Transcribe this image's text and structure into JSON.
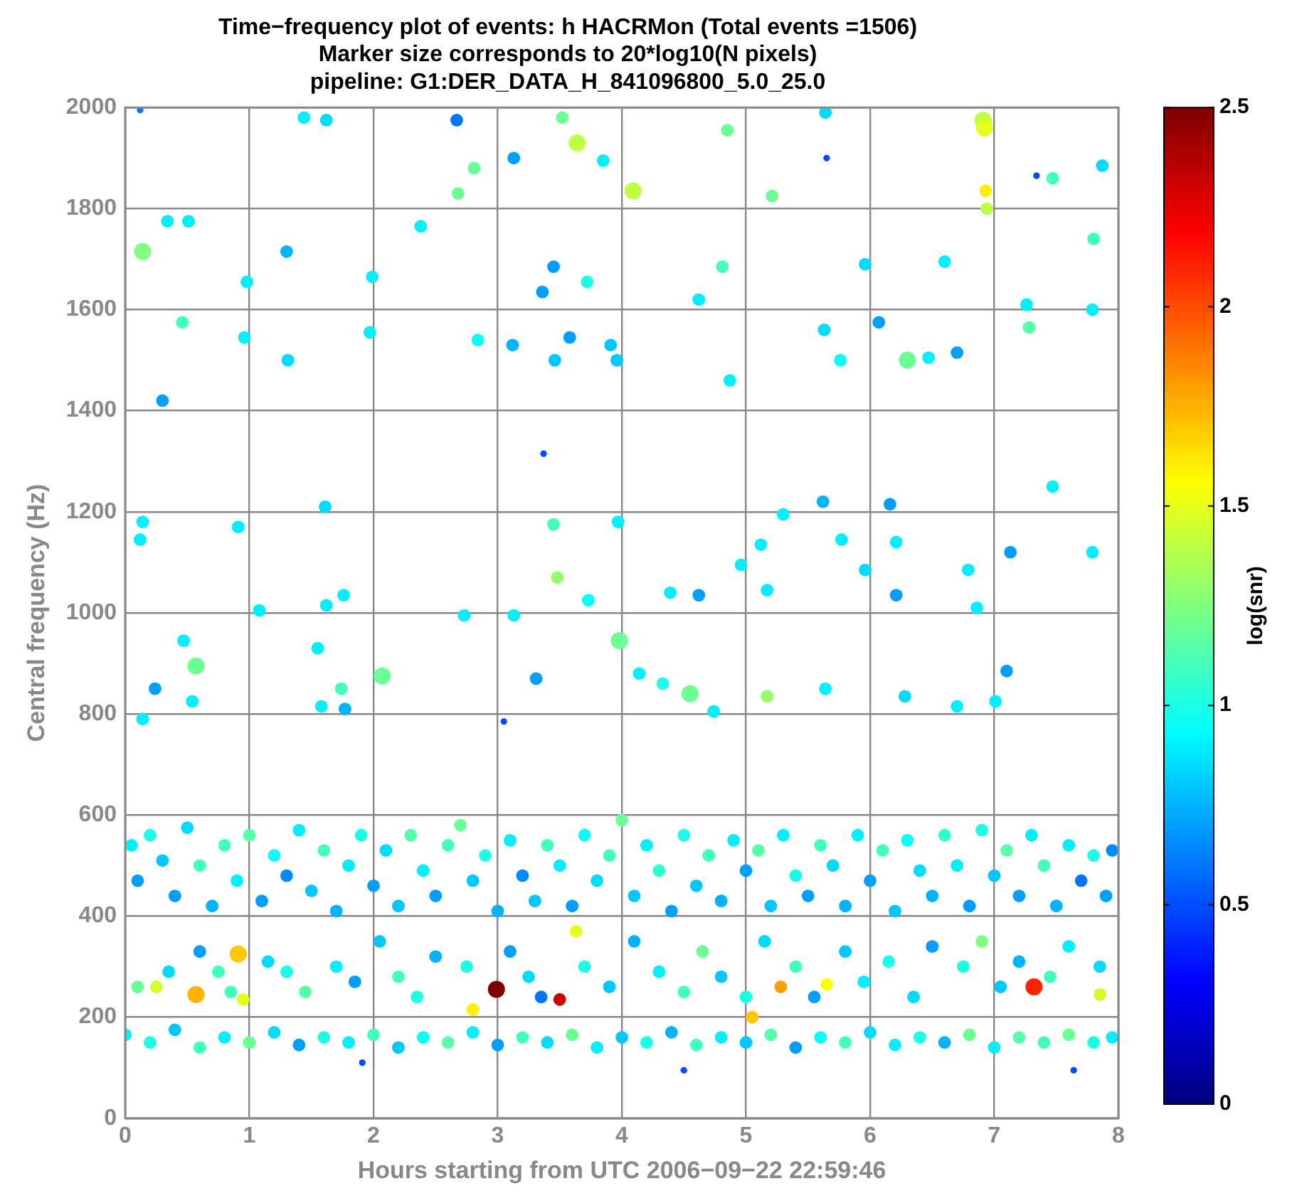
{
  "chart_data": {
    "type": "scatter",
    "title": "Time−frequency plot of events: h HACRMon (Total events =1506)",
    "subtitle": "Marker size corresponds to 20*log10(N pixels)\npipeline: G1:DER_DATA_H_841096800_5.0_25.0",
    "xlabel": "Hours starting from UTC 2006−09−22 22:59:46",
    "ylabel": "Central frequency (Hz)",
    "clabel": "log(snr)",
    "xlim": [
      0,
      8
    ],
    "xticks": [
      0,
      1,
      2,
      3,
      4,
      5,
      6,
      7,
      8
    ],
    "ylim": [
      0,
      2000
    ],
    "yticks": [
      0,
      200,
      400,
      600,
      800,
      1000,
      1200,
      1400,
      1600,
      1800,
      2000
    ],
    "clim": [
      0,
      2.5
    ],
    "cticks": [
      0,
      0.5,
      1,
      1.5,
      2,
      2.5
    ],
    "grid": true,
    "legend": false,
    "marker": "circle",
    "series": [
      {
        "x": [
          0.12,
          1.44,
          1.62,
          2.67,
          3.52,
          3.64,
          3.85,
          2.81,
          2.68,
          3.13,
          4.09,
          4.85,
          5.21,
          5.64,
          5.65,
          6.91,
          6.92,
          6.93,
          6.94,
          7.34,
          7.47,
          7.87,
          0.14,
          0.34,
          0.51,
          1.3,
          0.98,
          1.99,
          2.38,
          3.45,
          3.36,
          3.72,
          4.81,
          4.62,
          5.96,
          6.6,
          7.8,
          0.3,
          0.46,
          0.96,
          1.31,
          1.97,
          2.84,
          3.12,
          3.58,
          3.46,
          3.91,
          3.96,
          4.87,
          5.63,
          5.76,
          6.07,
          6.3,
          6.47,
          6.7,
          7.26,
          7.28,
          7.79,
          3.37,
          0.14,
          0.12,
          0.91,
          1.61,
          1.08,
          3.45,
          3.48,
          3.97,
          5.3,
          5.62,
          6.16,
          5.77,
          6.21,
          7.13,
          7.79,
          7.47,
          1.62,
          1.76,
          2.73,
          3.13,
          3.73,
          3.98,
          4.39,
          4.62,
          5.12,
          5.17,
          4.96,
          5.96,
          6.86,
          6.79,
          6.21,
          3.31,
          0.24,
          0.47,
          0.57,
          0.54,
          1.55,
          1.74,
          2.07,
          1.77,
          1.58,
          4.14,
          4.33,
          4.55,
          4.74,
          5.17,
          5.64,
          6.28,
          6.7,
          7.1,
          7.01,
          3.05,
          0.14,
          2.99,
          7.32,
          0.57,
          0.91,
          5.28,
          5.65,
          2.8,
          3.5,
          0.95,
          0.25,
          3.63,
          7.85,
          5.05,
          0.05,
          0.1,
          0.2,
          0.3,
          0.4,
          0.5,
          0.6,
          0.7,
          0.8,
          0.9,
          1.0,
          1.1,
          1.2,
          1.3,
          1.4,
          1.5,
          1.6,
          1.7,
          1.8,
          1.9,
          2.0,
          2.1,
          2.2,
          2.3,
          2.4,
          2.5,
          2.6,
          2.7,
          2.8,
          2.9,
          3.0,
          3.1,
          3.2,
          3.3,
          3.4,
          3.5,
          3.6,
          3.7,
          3.8,
          3.9,
          4.0,
          4.1,
          4.2,
          4.3,
          4.4,
          4.5,
          4.6,
          4.7,
          4.8,
          4.9,
          5.0,
          5.1,
          5.2,
          5.3,
          5.4,
          5.5,
          5.6,
          5.7,
          5.8,
          5.9,
          6.0,
          6.1,
          6.2,
          6.3,
          6.4,
          6.5,
          6.6,
          6.7,
          6.8,
          6.9,
          7.0,
          7.1,
          7.2,
          7.3,
          7.4,
          7.5,
          7.6,
          7.7,
          7.8,
          7.9,
          7.95,
          0.1,
          0.35,
          0.6,
          0.75,
          0.85,
          1.15,
          1.3,
          1.45,
          1.7,
          1.85,
          2.05,
          2.2,
          2.35,
          2.5,
          2.75,
          3.1,
          3.25,
          3.35,
          3.7,
          3.9,
          4.1,
          4.3,
          4.5,
          4.65,
          4.8,
          5.0,
          5.15,
          5.4,
          5.55,
          5.8,
          5.95,
          6.15,
          6.35,
          6.5,
          6.75,
          6.9,
          7.05,
          7.2,
          7.45,
          7.6,
          7.85,
          0.0,
          0.2,
          0.4,
          0.6,
          0.8,
          1.0,
          1.2,
          1.4,
          1.6,
          1.8,
          2.0,
          2.2,
          2.4,
          2.6,
          2.8,
          3.0,
          3.2,
          3.4,
          3.6,
          3.8,
          4.0,
          4.2,
          4.4,
          4.6,
          4.8,
          5.0,
          5.2,
          5.4,
          5.6,
          5.8,
          6.0,
          6.2,
          6.4,
          6.6,
          6.8,
          7.0,
          7.2,
          7.4,
          7.6,
          7.8,
          7.95,
          1.91,
          7.64,
          4.5
        ],
        "values": [
          1995,
          1980,
          1975,
          1975,
          1980,
          1930,
          1895,
          1880,
          1830,
          1900,
          1835,
          1955,
          1825,
          1990,
          1900,
          1975,
          1960,
          1835,
          1800,
          1865,
          1860,
          1885,
          1715,
          1775,
          1775,
          1715,
          1655,
          1665,
          1765,
          1685,
          1635,
          1655,
          1685,
          1620,
          1690,
          1695,
          1740,
          1420,
          1575,
          1545,
          1500,
          1555,
          1540,
          1530,
          1545,
          1500,
          1530,
          1500,
          1460,
          1560,
          1500,
          1575,
          1500,
          1505,
          1515,
          1610,
          1565,
          1600,
          1315,
          1180,
          1145,
          1170,
          1210,
          1005,
          1175,
          1070,
          1180,
          1195,
          1220,
          1215,
          1145,
          1140,
          1120,
          1120,
          1250,
          1015,
          1035,
          995,
          995,
          1025,
          945,
          1040,
          1035,
          1135,
          1045,
          1095,
          1085,
          1010,
          1085,
          1035,
          870,
          850,
          945,
          895,
          825,
          930,
          850,
          875,
          810,
          815,
          880,
          860,
          840,
          805,
          835,
          850,
          835,
          815,
          885,
          825,
          785,
          790,
          255,
          260,
          245,
          325,
          260,
          265,
          215,
          235,
          235,
          260,
          370,
          245,
          200,
          540,
          470,
          560,
          510,
          440,
          575,
          500,
          420,
          540,
          470,
          560,
          430,
          520,
          480,
          570,
          450,
          530,
          410,
          500,
          560,
          460,
          530,
          420,
          560,
          490,
          440,
          540,
          580,
          470,
          520,
          410,
          550,
          480,
          430,
          540,
          500,
          420,
          560,
          470,
          520,
          590,
          440,
          540,
          490,
          410,
          560,
          460,
          520,
          430,
          550,
          490,
          530,
          420,
          560,
          480,
          440,
          540,
          500,
          420,
          560,
          470,
          530,
          410,
          550,
          490,
          440,
          560,
          500,
          420,
          570,
          480,
          530,
          440,
          560,
          500,
          420,
          540,
          470,
          520,
          440,
          530,
          260,
          290,
          330,
          290,
          250,
          310,
          290,
          250,
          300,
          270,
          350,
          280,
          240,
          320,
          300,
          330,
          280,
          240,
          300,
          260,
          350,
          290,
          250,
          330,
          280,
          240,
          350,
          300,
          240,
          330,
          270,
          310,
          240,
          340,
          300,
          350,
          260,
          310,
          280,
          340,
          300,
          165,
          150,
          175,
          140,
          160,
          150,
          170,
          145,
          160,
          150,
          165,
          140,
          160,
          150,
          170,
          145,
          160,
          150,
          165,
          140,
          160,
          150,
          170,
          145,
          160,
          150,
          165,
          140,
          160,
          150,
          170,
          145,
          160,
          150,
          165,
          140,
          160,
          150,
          165,
          150,
          160,
          110,
          95,
          95
        ],
        "cvalues": [
          0.6,
          0.9,
          0.85,
          0.6,
          1.2,
          1.4,
          0.9,
          1.2,
          1.2,
          0.7,
          1.4,
          1.2,
          1.2,
          0.85,
          0.5,
          1.4,
          1.5,
          1.6,
          1.4,
          0.5,
          1.1,
          0.85,
          1.25,
          0.9,
          0.9,
          0.75,
          0.9,
          0.9,
          0.9,
          0.7,
          0.7,
          1.0,
          1.1,
          0.9,
          0.85,
          0.9,
          1.1,
          0.7,
          1.1,
          0.9,
          0.85,
          0.9,
          0.95,
          0.75,
          0.7,
          0.8,
          0.8,
          0.8,
          0.9,
          0.85,
          0.95,
          0.7,
          1.2,
          0.9,
          0.7,
          0.9,
          1.15,
          0.9,
          0.5,
          0.9,
          0.9,
          0.9,
          0.85,
          0.9,
          1.1,
          1.3,
          0.9,
          0.9,
          0.75,
          0.7,
          0.9,
          0.9,
          0.7,
          0.9,
          0.9,
          0.9,
          0.9,
          0.9,
          0.9,
          0.95,
          1.2,
          0.9,
          0.7,
          0.9,
          0.9,
          0.9,
          0.85,
          0.9,
          0.9,
          0.7,
          0.7,
          0.7,
          0.9,
          1.2,
          0.9,
          0.9,
          1.1,
          1.2,
          0.75,
          0.9,
          0.9,
          1.0,
          1.2,
          0.9,
          1.3,
          0.9,
          0.85,
          0.9,
          0.7,
          0.9,
          0.5,
          0.9,
          2.5,
          2.1,
          1.75,
          1.7,
          1.8,
          1.55,
          1.6,
          2.3,
          1.5,
          1.45,
          1.5,
          1.45,
          1.7,
          0.9,
          0.7,
          1.0,
          0.8,
          0.7,
          0.85,
          1.1,
          0.75,
          1.1,
          0.9,
          1.15,
          0.7,
          0.95,
          0.65,
          0.9,
          0.8,
          1.1,
          0.75,
          0.9,
          1.0,
          0.7,
          0.85,
          0.8,
          1.15,
          0.9,
          0.7,
          1.1,
          1.2,
          0.8,
          1.0,
          0.75,
          0.9,
          0.65,
          0.8,
          1.1,
          0.9,
          0.7,
          0.95,
          0.85,
          1.1,
          1.2,
          0.8,
          0.9,
          1.05,
          0.7,
          1.0,
          0.8,
          1.1,
          0.75,
          0.9,
          0.7,
          1.15,
          0.8,
          0.9,
          1.0,
          0.7,
          1.1,
          0.85,
          0.75,
          0.9,
          0.7,
          1.1,
          0.8,
          0.95,
          0.85,
          0.75,
          1.05,
          0.9,
          0.7,
          1.0,
          0.8,
          1.15,
          0.7,
          0.9,
          1.1,
          0.75,
          0.9,
          0.6,
          1.0,
          0.7,
          0.65,
          1.2,
          0.85,
          0.7,
          1.1,
          1.1,
          0.85,
          1.0,
          1.15,
          0.9,
          0.7,
          0.8,
          1.1,
          1.0,
          0.75,
          1.0,
          0.7,
          0.85,
          0.6,
          1.0,
          0.8,
          0.75,
          0.9,
          1.1,
          1.2,
          0.8,
          1.0,
          0.85,
          1.1,
          0.7,
          0.8,
          0.9,
          1.0,
          0.85,
          0.7,
          1.0,
          1.25,
          0.8,
          0.75,
          1.1,
          0.9,
          0.85,
          0.9,
          1.0,
          0.8,
          1.1,
          0.9,
          1.2,
          0.85,
          0.7,
          1.0,
          0.9,
          1.1,
          0.8,
          0.95,
          1.15,
          0.9,
          0.7,
          1.1,
          0.85,
          1.2,
          0.9,
          0.8,
          1.0,
          0.75,
          1.1,
          0.9,
          0.8,
          1.15,
          0.7,
          0.95,
          1.1,
          0.85,
          0.9,
          1.0,
          0.75,
          1.2,
          0.9,
          1.15,
          1.1,
          1.2,
          1.0,
          0.9,
          0.5,
          0.5,
          0.5
        ],
        "sizes": [
          0.15,
          0.55,
          0.55,
          0.55,
          0.55,
          1,
          0.55,
          0.55,
          0.55,
          0.55,
          1,
          0.55,
          0.55,
          0.55,
          0.15,
          1,
          1,
          0.55,
          0.55,
          0.15,
          0.55,
          0.55,
          1,
          0.55,
          0.55,
          0.55,
          0.55,
          0.55,
          0.55,
          0.55,
          0.55,
          0.55,
          0.55,
          0.55,
          0.55,
          0.55,
          0.55,
          0.55,
          0.55,
          0.55,
          0.55,
          0.55,
          0.55,
          0.55,
          0.55,
          0.55,
          0.55,
          0.55,
          0.55,
          0.55,
          0.55,
          0.55,
          1,
          0.55,
          0.55,
          0.55,
          0.55,
          0.55,
          0.15,
          0.55,
          0.55,
          0.55,
          0.55,
          0.55,
          0.55,
          0.55,
          0.55,
          0.55,
          0.55,
          0.55,
          0.55,
          0.55,
          0.55,
          0.55,
          0.55,
          0.55,
          0.55,
          0.55,
          0.55,
          0.55,
          1,
          0.55,
          0.55,
          0.55,
          0.55,
          0.55,
          0.55,
          0.55,
          0.55,
          0.55,
          0.55,
          0.55,
          0.55,
          1,
          0.55,
          0.55,
          0.55,
          1,
          0.55,
          0.55,
          0.55,
          0.55,
          1,
          0.55,
          0.55,
          0.55,
          0.55,
          0.55,
          0.55,
          0.55,
          0.15,
          0.55,
          1,
          1,
          1,
          1,
          0.55,
          0.55,
          0.55,
          0.55,
          0.55,
          0.55,
          0.55,
          0.55,
          0.55,
          0.55,
          0.55,
          0.55,
          0.55,
          0.55,
          0.55,
          0.55,
          0.55,
          0.55,
          0.55,
          0.55,
          0.55,
          0.55,
          0.55,
          0.55,
          0.55,
          0.55,
          0.55,
          0.55,
          0.55,
          0.55,
          0.55,
          0.55,
          0.55,
          0.55,
          0.55,
          0.55,
          0.55,
          0.55,
          0.55,
          0.55,
          0.55,
          0.55,
          0.55,
          0.55,
          0.55,
          0.55,
          0.55,
          0.55,
          0.55,
          0.55,
          0.55,
          0.55,
          0.55,
          0.55,
          0.55,
          0.55,
          0.55,
          0.55,
          0.55,
          0.55,
          0.55,
          0.55,
          0.55,
          0.55,
          0.55,
          0.55,
          0.55,
          0.55,
          0.55,
          0.55,
          0.55,
          0.55,
          0.55,
          0.55,
          0.55,
          0.55,
          0.55,
          0.55,
          0.55,
          0.55,
          0.55,
          0.55,
          0.55,
          0.55,
          0.55,
          0.55,
          0.55,
          0.55,
          0.55,
          0.55,
          0.55,
          0.55,
          0.55,
          0.55,
          0.55,
          0.55,
          0.55,
          0.55,
          0.55,
          0.55,
          0.55,
          0.55,
          0.55,
          0.55,
          0.55,
          0.55,
          0.55,
          0.55,
          0.55,
          0.55,
          0.55,
          0.55,
          0.55,
          0.55,
          0.55,
          0.55,
          0.55,
          0.55,
          0.55,
          0.55,
          0.55,
          0.55,
          0.55,
          0.55,
          0.55,
          0.55,
          0.55,
          0.55,
          0.55,
          0.55,
          0.55,
          0.55,
          0.55,
          0.55,
          0.55,
          0.55,
          0.55,
          0.55,
          0.55,
          0.55,
          0.55,
          0.55,
          0.55,
          0.55,
          0.55,
          0.55,
          0.55,
          0.55,
          0.55,
          0.55,
          0.55,
          0.55,
          0.55,
          0.55,
          0.55,
          0.55,
          0.55,
          0.55,
          0.55,
          0.55,
          0.55,
          0.55,
          0.55,
          0.55,
          0.55,
          0.55,
          0.55,
          0.55,
          0.55,
          0.55,
          0.55,
          0.55,
          0.15,
          0.15,
          0.15
        ]
      }
    ]
  }
}
